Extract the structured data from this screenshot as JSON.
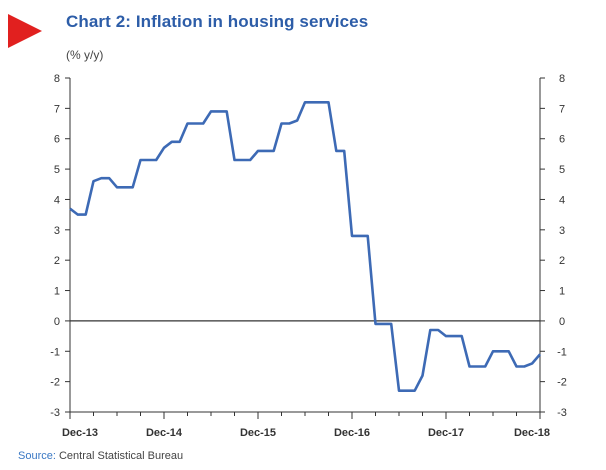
{
  "header": {
    "title": "Chart 2: Inflation in housing services",
    "unit": "(% y/y)"
  },
  "footer": {
    "source_label": "Source:",
    "source_text": "Central Statistical Bureau"
  },
  "colors": {
    "accent_marker": "#e1201f",
    "title": "#2d5da8",
    "line": "#3d6ab5",
    "zero_line": "#333333"
  },
  "chart_data": {
    "type": "line",
    "title": "Chart 2: Inflation in housing services",
    "ylabel": "(% y/y)",
    "xlabel": "",
    "ylim": [
      -3,
      8
    ],
    "y_ticks": [
      -3,
      -2,
      -1,
      0,
      1,
      2,
      3,
      4,
      5,
      6,
      7,
      8
    ],
    "secondary_y_ticks": [
      -3,
      -2,
      -1,
      0,
      1,
      2,
      3,
      4,
      5,
      6,
      7,
      8
    ],
    "x_tick_labels": [
      "Dec-13",
      "Dec-14",
      "Dec-15",
      "Dec-16",
      "Dec-17",
      "Dec-18"
    ],
    "grid": false,
    "legend": "none",
    "x": [
      "Dec-13",
      "Jan-14",
      "Feb-14",
      "Mar-14",
      "Apr-14",
      "May-14",
      "Jun-14",
      "Jul-14",
      "Aug-14",
      "Sep-14",
      "Oct-14",
      "Nov-14",
      "Dec-14",
      "Jan-15",
      "Feb-15",
      "Mar-15",
      "Apr-15",
      "May-15",
      "Jun-15",
      "Jul-15",
      "Aug-15",
      "Sep-15",
      "Oct-15",
      "Nov-15",
      "Dec-15",
      "Jan-16",
      "Feb-16",
      "Mar-16",
      "Apr-16",
      "May-16",
      "Jun-16",
      "Jul-16",
      "Aug-16",
      "Sep-16",
      "Oct-16",
      "Nov-16",
      "Dec-16",
      "Jan-17",
      "Feb-17",
      "Mar-17",
      "Apr-17",
      "May-17",
      "Jun-17",
      "Jul-17",
      "Aug-17",
      "Sep-17",
      "Oct-17",
      "Nov-17",
      "Dec-17",
      "Jan-18",
      "Feb-18",
      "Mar-18",
      "Apr-18",
      "May-18",
      "Jun-18",
      "Jul-18",
      "Aug-18",
      "Sep-18",
      "Oct-18",
      "Nov-18",
      "Dec-18"
    ],
    "series": [
      {
        "values": [
          3.7,
          3.5,
          3.5,
          4.6,
          4.7,
          4.7,
          4.4,
          4.4,
          4.4,
          5.3,
          5.3,
          5.3,
          5.7,
          5.9,
          5.9,
          6.5,
          6.5,
          6.5,
          6.9,
          6.9,
          6.9,
          5.3,
          5.3,
          5.3,
          5.6,
          5.6,
          5.6,
          6.5,
          6.5,
          6.6,
          7.2,
          7.2,
          7.2,
          7.2,
          5.6,
          5.6,
          2.8,
          2.8,
          2.8,
          -0.1,
          -0.1,
          -0.1,
          -2.3,
          -2.3,
          -2.3,
          -1.8,
          -0.3,
          -0.3,
          -0.5,
          -0.5,
          -0.5,
          -1.5,
          -1.5,
          -1.5,
          -1.0,
          -1.0,
          -1.0,
          -1.5,
          -1.5,
          -1.4,
          -1.1
        ]
      }
    ]
  }
}
